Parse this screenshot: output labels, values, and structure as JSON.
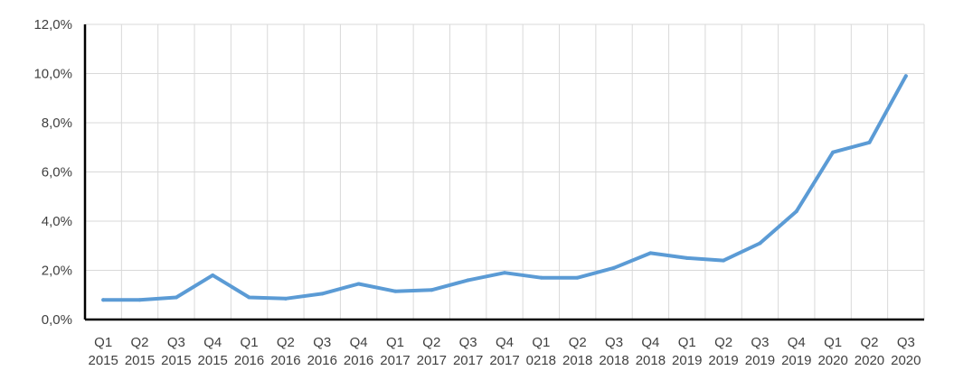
{
  "chart_data": {
    "type": "line",
    "title": "",
    "xlabel": "",
    "ylabel": "",
    "ylim": [
      0,
      12
    ],
    "y_ticks": [
      "0,0%",
      "2,0%",
      "4,0%",
      "6,0%",
      "8,0%",
      "10,0%",
      "12,0%"
    ],
    "grid": "on",
    "categories": [
      "Q1 2015",
      "Q2 2015",
      "Q3 2015",
      "Q4 2015",
      "Q1 2016",
      "Q2 2016",
      "Q3 2016",
      "Q4 2016",
      "Q1 2017",
      "Q2 2017",
      "Q3 2017",
      "Q4 2017",
      "Q1 0218",
      "Q2 2018",
      "Q3 2018",
      "Q4 2018",
      "Q1 2019",
      "Q2 2019",
      "Q3 2019",
      "Q4 2019",
      "Q1 2020",
      "Q2 2020",
      "Q3 2020"
    ],
    "series": [
      {
        "color": "#5b9bd5",
        "values": [
          0.8,
          0.8,
          0.9,
          1.8,
          0.9,
          0.85,
          1.05,
          1.45,
          1.15,
          1.2,
          1.6,
          1.9,
          1.7,
          1.7,
          2.1,
          2.7,
          2.5,
          2.4,
          3.1,
          4.4,
          6.8,
          7.2,
          9.9
        ]
      }
    ]
  }
}
